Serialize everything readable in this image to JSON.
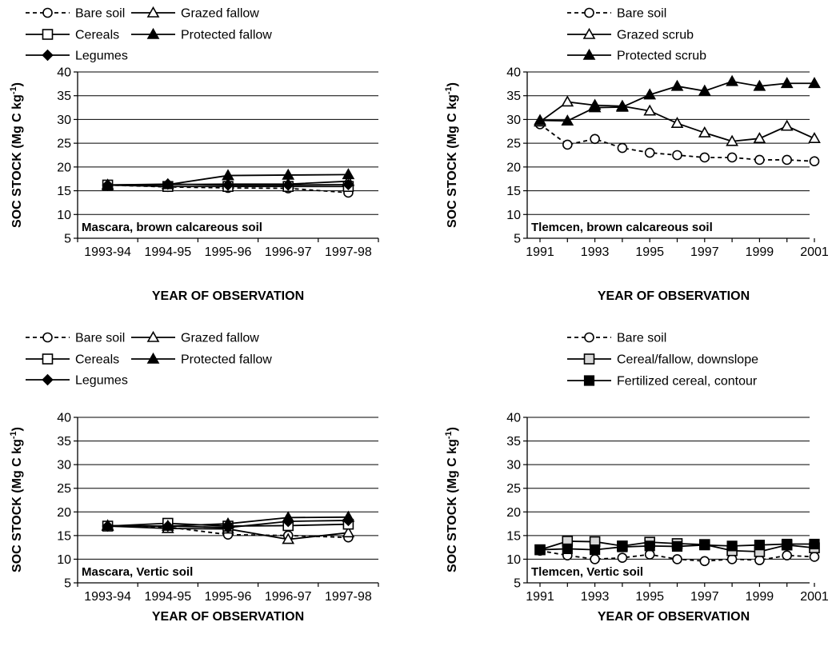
{
  "chart_data": [
    {
      "type": "line",
      "annotation": "Mascara, brown calcareous soil",
      "xlabel": "YEAR OF OBSERVATION",
      "ylabel": "SOC STOCK (Mg C kg-1)",
      "ylim": [
        5,
        40
      ],
      "yticks": [
        5,
        10,
        15,
        20,
        25,
        30,
        35,
        40
      ],
      "categories": [
        "1993-94",
        "1994-95",
        "1995-96",
        "1996-97",
        "1997-98"
      ],
      "xticks": [
        "1993-94",
        "1994-95",
        "1995-96",
        "1996-97",
        "1997-98"
      ],
      "legend": "top",
      "series": [
        {
          "name": "Bare soil",
          "marker": "circle-open",
          "dashed": true,
          "x": [
            "1993-94",
            "1994-95",
            "1995-96",
            "1996-97",
            "1997-98"
          ],
          "values": [
            16.2,
            15.8,
            15.6,
            15.5,
            14.6
          ]
        },
        {
          "name": "Grazed fallow",
          "marker": "triangle-open",
          "dashed": false,
          "x": [
            "1993-94",
            "1994-95",
            "1995-96",
            "1996-97",
            "1997-98"
          ],
          "values": [
            16.2,
            16.3,
            16.4,
            16.4,
            17.0
          ]
        },
        {
          "name": "Cereals",
          "marker": "square-open",
          "dashed": false,
          "x": [
            "1993-94",
            "1994-95",
            "1995-96",
            "1996-97",
            "1997-98"
          ],
          "values": [
            16.2,
            15.9,
            15.9,
            15.9,
            15.9
          ]
        },
        {
          "name": "Protected fallow",
          "marker": "triangle-filled",
          "dashed": false,
          "x": [
            "1993-94",
            "1994-95",
            "1995-96",
            "1996-97",
            "1997-98"
          ],
          "values": [
            16.2,
            16.3,
            18.2,
            18.3,
            18.4
          ]
        },
        {
          "name": "Legumes",
          "marker": "diamond-filled",
          "dashed": false,
          "x": [
            "1993-94",
            "1994-95",
            "1995-96",
            "1996-97",
            "1997-98"
          ],
          "values": [
            16.2,
            16.4,
            16.2,
            16.2,
            16.3
          ]
        }
      ]
    },
    {
      "type": "line",
      "annotation": "Tlemcen, brown calcareous soil",
      "xlabel": "YEAR OF OBSERVATION",
      "ylabel": "SOC STOCK (Mg C kg-1)",
      "ylim": [
        5,
        40
      ],
      "yticks": [
        5,
        10,
        15,
        20,
        25,
        30,
        35,
        40
      ],
      "xlim": [
        1991,
        2001
      ],
      "xticks": [
        "1991",
        "1993",
        "1995",
        "1997",
        "1999",
        "2001"
      ],
      "legend": "top",
      "series": [
        {
          "name": "Bare soil",
          "marker": "circle-open",
          "dashed": true,
          "x": [
            1991,
            1992,
            1993,
            1994,
            1995,
            1996,
            1997,
            1998,
            1999,
            2000,
            2001
          ],
          "values": [
            29.0,
            24.7,
            25.9,
            24.0,
            23.0,
            22.5,
            22.0,
            22.0,
            21.5,
            21.5,
            21.2
          ]
        },
        {
          "name": "Grazed scrub",
          "marker": "triangle-open",
          "dashed": false,
          "x": [
            1991,
            1992,
            1993,
            1994,
            1995,
            1996,
            1997,
            1998,
            1999,
            2000,
            2001
          ],
          "values": [
            29.5,
            33.7,
            33.0,
            32.8,
            31.8,
            29.2,
            27.2,
            25.4,
            26.0,
            28.6,
            26.0
          ]
        },
        {
          "name": "Protected scrub",
          "marker": "triangle-filled",
          "dashed": false,
          "x": [
            1991,
            1992,
            1993,
            1994,
            1995,
            1996,
            1997,
            1998,
            1999,
            2000,
            2001
          ],
          "values": [
            29.8,
            29.7,
            32.5,
            32.6,
            35.2,
            37.0,
            36.0,
            38.0,
            37.0,
            37.6,
            37.6
          ]
        }
      ]
    },
    {
      "type": "line",
      "annotation": "Mascara, Vertic soil",
      "xlabel": "YEAR OF OBSERVATION",
      "ylabel": "SOC STOCK (Mg C kg-1)",
      "ylim": [
        5,
        40
      ],
      "yticks": [
        5,
        10,
        15,
        20,
        25,
        30,
        35,
        40
      ],
      "categories": [
        "1993-94",
        "1994-95",
        "1995-96",
        "1996-97",
        "1997-98"
      ],
      "xticks": [
        "1993-94",
        "1994-95",
        "1995-96",
        "1996-97",
        "1997-98"
      ],
      "legend": "top",
      "series": [
        {
          "name": "Bare soil",
          "marker": "circle-open",
          "dashed": true,
          "x": [
            "1993-94",
            "1994-95",
            "1995-96",
            "1996-97",
            "1997-98"
          ],
          "values": [
            17.0,
            16.8,
            15.2,
            15.0,
            14.6
          ]
        },
        {
          "name": "Grazed fallow",
          "marker": "triangle-open",
          "dashed": false,
          "x": [
            "1993-94",
            "1994-95",
            "1995-96",
            "1996-97",
            "1997-98"
          ],
          "values": [
            17.0,
            16.5,
            16.4,
            14.2,
            15.6
          ]
        },
        {
          "name": "Cereals",
          "marker": "square-open",
          "dashed": false,
          "x": [
            "1993-94",
            "1994-95",
            "1995-96",
            "1996-97",
            "1997-98"
          ],
          "values": [
            17.0,
            17.6,
            17.0,
            17.1,
            17.4
          ]
        },
        {
          "name": "Protected fallow",
          "marker": "triangle-filled",
          "dashed": false,
          "x": [
            "1993-94",
            "1994-95",
            "1995-96",
            "1996-97",
            "1997-98"
          ],
          "values": [
            17.1,
            17.0,
            17.5,
            18.8,
            18.9
          ]
        },
        {
          "name": "Legumes",
          "marker": "diamond-filled",
          "dashed": false,
          "x": [
            "1993-94",
            "1994-95",
            "1995-96",
            "1996-97",
            "1997-98"
          ],
          "values": [
            17.0,
            17.0,
            16.7,
            18.0,
            18.2
          ]
        }
      ]
    },
    {
      "type": "line",
      "annotation": "Tlemcen, Vertic soil",
      "xlabel": "YEAR OF OBSERVATION",
      "ylabel": "SOC STOCK (Mg C kg-1)",
      "ylim": [
        5,
        40
      ],
      "yticks": [
        5,
        10,
        15,
        20,
        25,
        30,
        35,
        40
      ],
      "xlim": [
        1991,
        2001
      ],
      "xticks": [
        "1991",
        "1993",
        "1995",
        "1997",
        "1999",
        "2001"
      ],
      "legend": "top",
      "series": [
        {
          "name": "Bare soil",
          "marker": "circle-open",
          "dashed": true,
          "x": [
            1991,
            1992,
            1993,
            1994,
            1995,
            1996,
            1997,
            1998,
            1999,
            2000,
            2001
          ],
          "values": [
            11.8,
            10.8,
            10.0,
            10.3,
            11.0,
            10.0,
            9.6,
            10.0,
            9.8,
            10.8,
            10.5
          ]
        },
        {
          "name": "Cereal/fallow, downslope",
          "marker": "square-dotted",
          "dashed": false,
          "x": [
            1991,
            1992,
            1993,
            1994,
            1995,
            1996,
            1997,
            1998,
            1999,
            2000,
            2001
          ],
          "values": [
            12.0,
            13.8,
            13.7,
            12.8,
            13.6,
            13.3,
            13.1,
            11.8,
            11.6,
            13.0,
            12.4
          ]
        },
        {
          "name": "Fertilized cereal, contour",
          "marker": "square-filled",
          "dashed": false,
          "x": [
            1991,
            1992,
            1993,
            1994,
            1995,
            1996,
            1997,
            1998,
            1999,
            2000,
            2001
          ],
          "values": [
            12.0,
            12.2,
            12.0,
            12.6,
            12.8,
            12.7,
            13.0,
            12.8,
            13.0,
            13.2,
            13.2
          ]
        }
      ]
    }
  ]
}
